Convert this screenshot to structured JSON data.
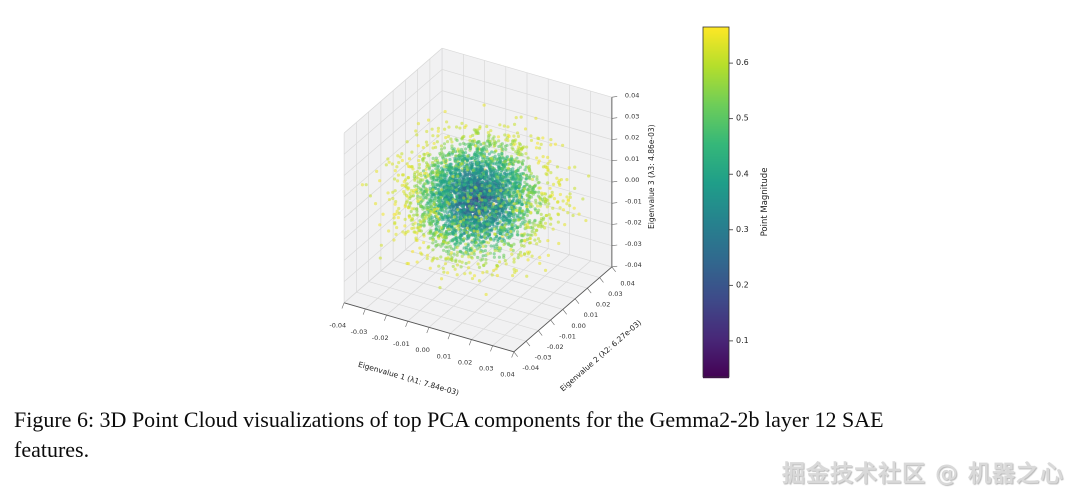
{
  "figure": {
    "caption": {
      "lines": [
        "Figure 6: 3D Point Cloud visualizations of top PCA components for the Gemma2-2b layer 12 SAE",
        "features."
      ]
    }
  },
  "watermark": {
    "text": "掘金技术社区 @ 机器之心"
  },
  "chart_data": {
    "type": "scatter3d",
    "title": "",
    "description": "3D point cloud of SAE feature projections onto top 3 PCA eigenvectors; dense ellipsoidal cluster centered at origin, colored by point magnitude (viridis), dark blue/teal core with green-yellow outliers",
    "axes": {
      "x": {
        "label": "Eigenvalue 1 (λ1: 7.84e-03)",
        "range": [
          -0.04,
          0.04
        ],
        "ticks": [
          -0.04,
          -0.03,
          -0.02,
          -0.01,
          0,
          0.01,
          0.02,
          0.03,
          0.04
        ]
      },
      "y": {
        "label": "Eigenvalue 2 (λ2: 6.27e-03)",
        "range": [
          -0.04,
          0.04
        ],
        "ticks": [
          -0.04,
          -0.03,
          -0.02,
          -0.01,
          0,
          0.01,
          0.02,
          0.03,
          0.04
        ]
      },
      "z": {
        "label": "Eigenvalue 3 (λ3: 4.86e-03)",
        "range": [
          -0.04,
          0.04
        ],
        "ticks": [
          -0.04,
          -0.03,
          -0.02,
          -0.01,
          0,
          0.01,
          0.02,
          0.03,
          0.04
        ]
      }
    },
    "colorbar": {
      "label": "Point Magnitude",
      "ticks": [
        0.1,
        0.2,
        0.3,
        0.4,
        0.5,
        0.6
      ],
      "vmin": 0.035,
      "vmax": 0.665,
      "colormap": "viridis"
    },
    "view": {
      "azim": -60,
      "elev": 30
    },
    "grid": true,
    "pane_color": "#f1f1f2",
    "grid_color": "#d9d9d9",
    "points": {
      "n": 3800,
      "n_outliers": 22,
      "seed": 42,
      "center": [
        -0.001,
        0,
        0.001
      ],
      "std": [
        0.0135,
        0.0135,
        0.0105
      ],
      "clip": 0.0395,
      "color_by": "radius",
      "point_alpha": 0.55,
      "point_size": 1.6
    }
  }
}
